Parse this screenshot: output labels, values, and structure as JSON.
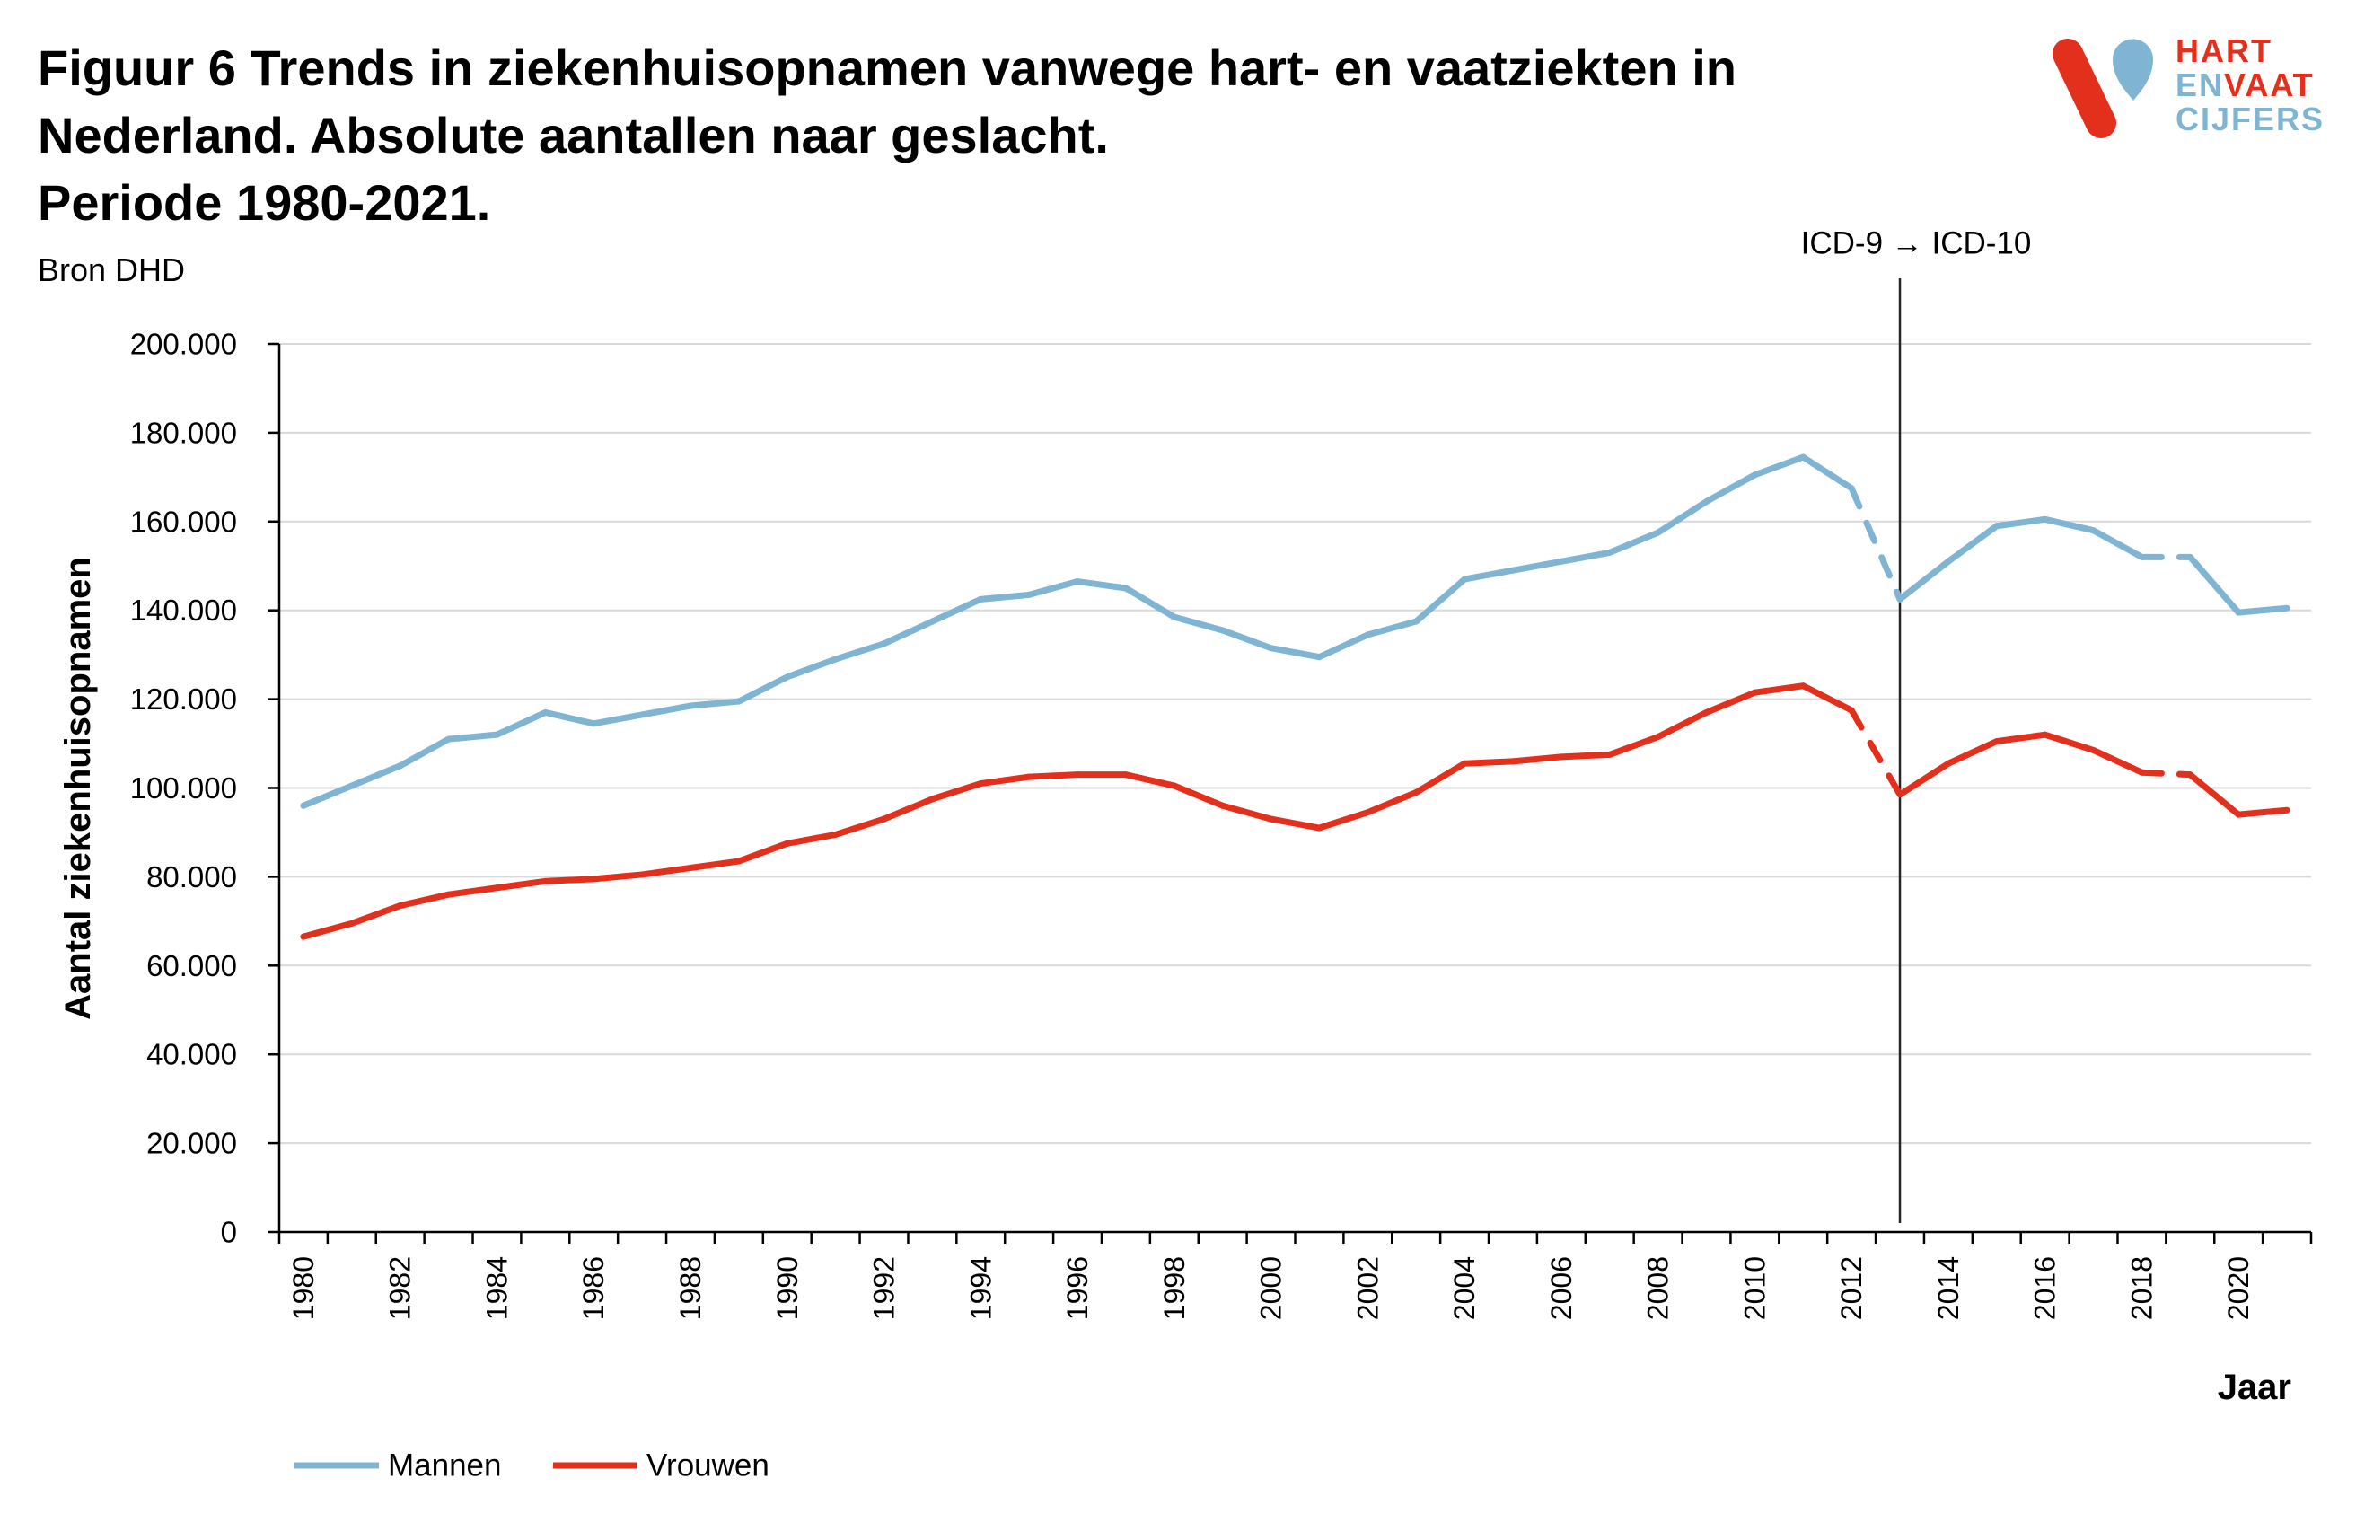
{
  "logo": {
    "icon": "heart-vessel-v-mark",
    "hart": "HART",
    "en": "EN",
    "vaat": "VAAT",
    "cijfers": "CIJFERS",
    "red": "#E2301C",
    "blue": "#7FB5D3"
  },
  "chart_data": {
    "type": "line",
    "title": [
      "Figuur 6 Trends in ziekenhuisopnamen vanwege hart- en vaatziekten in",
      "Nederland. Absolute aantallen naar geslacht.",
      "Periode 1980-2021."
    ],
    "source": "Bron DHD",
    "xlabel": "Jaar",
    "ylabel": "Aantal ziekenhuisopnamen",
    "x": [
      1980,
      1981,
      1982,
      1983,
      1984,
      1985,
      1986,
      1987,
      1988,
      1989,
      1990,
      1991,
      1992,
      1993,
      1994,
      1995,
      1996,
      1997,
      1998,
      1999,
      2000,
      2001,
      2002,
      2003,
      2004,
      2005,
      2006,
      2007,
      2008,
      2009,
      2010,
      2011,
      2012,
      2013,
      2014,
      2015,
      2016,
      2017,
      2018,
      2019,
      2020,
      2021
    ],
    "x_tick_labels": [
      "1980",
      "1982",
      "1984",
      "1986",
      "1988",
      "1990",
      "1992",
      "1994",
      "1996",
      "1998",
      "2000",
      "2002",
      "2004",
      "2006",
      "2008",
      "2010",
      "2012",
      "2014",
      "2016",
      "2018",
      "2020"
    ],
    "ylim": [
      0,
      200000
    ],
    "y_ticks": [
      {
        "value": 0,
        "label": "0"
      },
      {
        "value": 20000,
        "label": "20.000"
      },
      {
        "value": 40000,
        "label": "40.000"
      },
      {
        "value": 60000,
        "label": "60.000"
      },
      {
        "value": 80000,
        "label": "80.000"
      },
      {
        "value": 100000,
        "label": "100.000"
      },
      {
        "value": 120000,
        "label": "120.000"
      },
      {
        "value": 140000,
        "label": "140.000"
      },
      {
        "value": 160000,
        "label": "160.000"
      },
      {
        "value": 180000,
        "label": "180.000"
      },
      {
        "value": 200000,
        "label": "200.000"
      }
    ],
    "series": [
      {
        "name": "Mannen",
        "color": "#7FB5D3",
        "values": [
          96000,
          100500,
          105000,
          111000,
          112000,
          117000,
          114500,
          116500,
          118500,
          119500,
          125000,
          129000,
          132500,
          137500,
          142500,
          143500,
          146500,
          145000,
          138500,
          135500,
          131500,
          129500,
          134500,
          137500,
          147000,
          149000,
          151000,
          153000,
          157500,
          164500,
          170500,
          174500,
          167500,
          142500,
          151000,
          159000,
          160500,
          158000,
          152000,
          152000,
          139500,
          140500
        ]
      },
      {
        "name": "Vrouwen",
        "color": "#E2301C",
        "values": [
          66500,
          69500,
          73500,
          76000,
          77500,
          79000,
          79500,
          80500,
          82000,
          83500,
          87500,
          89500,
          93000,
          97500,
          101000,
          102500,
          103000,
          103000,
          100500,
          96000,
          93000,
          91000,
          94500,
          99000,
          105500,
          106000,
          107000,
          107500,
          111500,
          117000,
          121500,
          123000,
          117500,
          98500,
          105500,
          110500,
          112000,
          108500,
          103500,
          103000,
          94000,
          95000
        ]
      }
    ],
    "dashed_segments": [
      [
        2012,
        2013
      ],
      [
        2018,
        2019
      ]
    ],
    "annotations": [
      {
        "x": 2013,
        "label": "ICD-9 → ICD-10"
      }
    ],
    "grid": true,
    "legend_position": "bottom-left"
  }
}
